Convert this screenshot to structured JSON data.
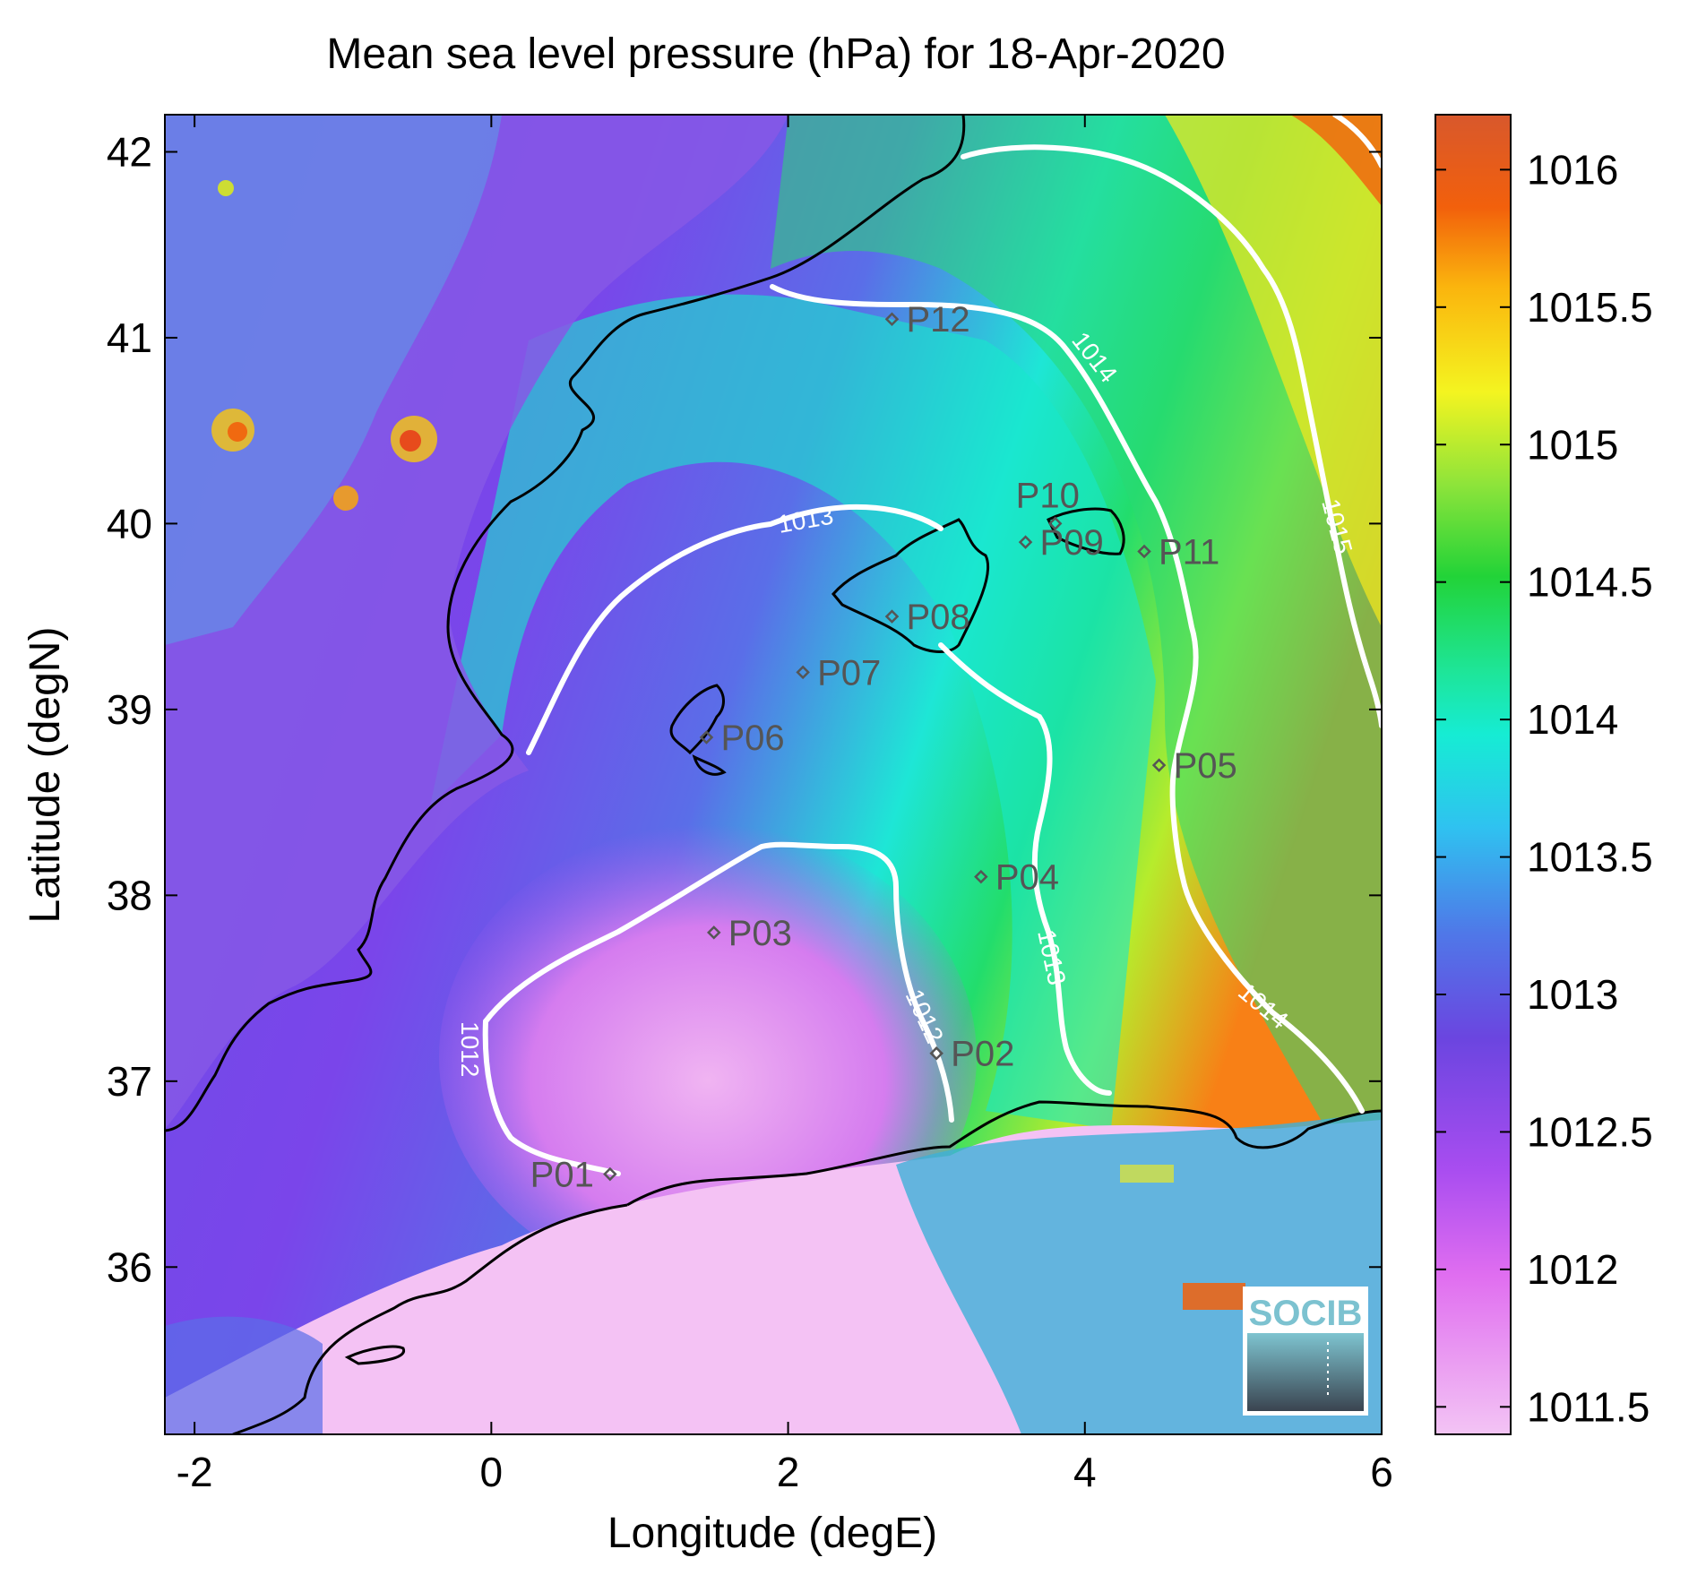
{
  "title": "Mean sea level pressure (hPa) for 18-Apr-2020",
  "x_axis": {
    "label": "Longitude (degE)",
    "range": [
      -2.2,
      6.0
    ],
    "ticks": [
      -2,
      0,
      2,
      4,
      6
    ],
    "tick_labels": [
      "-2",
      "0",
      "2",
      "4",
      "6"
    ]
  },
  "y_axis": {
    "label": "Latitude (degN)",
    "range": [
      35.1,
      42.2
    ],
    "ticks": [
      36,
      37,
      38,
      39,
      40,
      41,
      42
    ],
    "tick_labels": [
      "36",
      "37",
      "38",
      "39",
      "40",
      "41",
      "42"
    ]
  },
  "colorbar": {
    "range": [
      1011.4,
      1016.2
    ],
    "ticks": [
      1011.5,
      1012,
      1012.5,
      1013,
      1013.5,
      1014,
      1014.5,
      1015,
      1015.5,
      1016
    ],
    "tick_labels": [
      "1011.5",
      "1012",
      "1012.5",
      "1013",
      "1013.5",
      "1014",
      "1014.5",
      "1015",
      "1015.5",
      "1016"
    ],
    "placement": "right"
  },
  "contour_labels": [
    {
      "text": "1012"
    },
    {
      "text": "1012"
    },
    {
      "text": "1013"
    },
    {
      "text": "1013"
    },
    {
      "text": "1014"
    },
    {
      "text": "1014"
    },
    {
      "text": "1015"
    }
  ],
  "stations": [
    {
      "name": "P01",
      "lon": 0.8,
      "lat": 36.5
    },
    {
      "name": "P02",
      "lon": 3.0,
      "lat": 37.15
    },
    {
      "name": "P03",
      "lon": 1.5,
      "lat": 37.8
    },
    {
      "name": "P04",
      "lon": 3.3,
      "lat": 38.1
    },
    {
      "name": "P05",
      "lon": 4.5,
      "lat": 38.7
    },
    {
      "name": "P06",
      "lon": 1.45,
      "lat": 38.85
    },
    {
      "name": "P07",
      "lon": 2.1,
      "lat": 39.2
    },
    {
      "name": "P08",
      "lon": 2.7,
      "lat": 39.5
    },
    {
      "name": "P09",
      "lon": 3.6,
      "lat": 39.9
    },
    {
      "name": "P10",
      "lon": 3.8,
      "lat": 40.0
    },
    {
      "name": "P11",
      "lon": 4.4,
      "lat": 39.85
    },
    {
      "name": "P12",
      "lon": 2.7,
      "lat": 41.1
    }
  ],
  "logo": {
    "text": "SOCIB"
  },
  "colors": {
    "contour": "#ffffff",
    "coastline": "#000000",
    "station": "#555555"
  }
}
